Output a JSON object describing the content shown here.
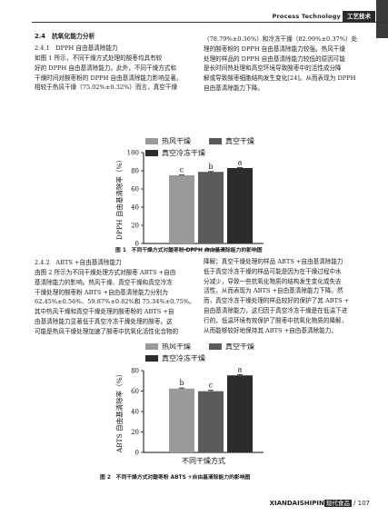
{
  "header": {
    "journal_en": "Process Technology",
    "journal_cn": "工艺技术"
  },
  "section": {
    "title": "2.4　抗氧化能力分析"
  },
  "sub1": {
    "title": "2.4.1　DPPH 自由基清除能力"
  },
  "left_para1": [
    "如图 1 所示，不同干燥方式处理的酸枣均具有较",
    "好的 DPPH 自由基清除能力。此外，不同干燥方式和",
    "干燥时间对酸枣粉的 DPPH 自由基清除能力影响显著。",
    "相较于热风干燥（75.02%±0.32%）而言，真空干燥"
  ],
  "right_para1": [
    "（78.79%±0.36%）和冷冻干燥（82.99%±0.37%）处",
    "理的酸枣粉的 DPPH 自由基清除能力较强。热风干燥",
    "处理的样品的 DPPH 自由基清除能力较低的原因可能",
    "是长时间热处理和高空环境导致酸枣中的活性成分降",
    "解或导致酸枣细胞结构发生变化[24]。从而表现为 DPPH",
    "自由基清除能力下降。"
  ],
  "fig1": {
    "caption": "图 1　不同干燥方式对酸枣粉 DPPH 自由基清除能力的影响图",
    "legend": [
      "热风干燥",
      "真空干燥",
      "真空冷冻干燥"
    ],
    "ylabel": "DPPH 自由基清除率（%）",
    "xlabel": "不同干燥方式",
    "letters": [
      "c",
      "b",
      "a"
    ]
  },
  "sub2": {
    "title": "2.4.2　ABTS +自由基清除能力"
  },
  "left_para2": [
    "由图 2 所示为不同干燥处理方式对酸枣 ABTS +自由",
    "基清除能力的影响。热风干燥、真空干燥和真空冷冻",
    "干燥处理的酸枣粉 ABTS +自由基清除能力分别为",
    "62.45%±0.56%、59.87%±0.82%和 75.34%±0.75%。",
    "其中热风干燥和真空干燥处理的酸枣粉的 ABTS +自",
    "由基清除能力显著低于真空冷冻干燥处理的酸枣。这",
    "可能是热风干燥处理加速了酸枣中抗氧化活性化合物的"
  ],
  "right_para2": [
    "降解；真空干燥处理的样品 ABTS +自由基清除能力",
    "低于真空冷冻干燥的样品可能是因为在干燥过程中水",
    "分减少，导致一些抗氧化物质的结构发生变化或失去",
    "活性，从而表现为 ABTS +自由基清除能力下降。然",
    "而，真空冷冻干燥处理的样品较好的保护了其 ABTS +",
    "自由基清除能力，这归因于真空冷冻干燥是在低温下进",
    "行的，低温环境有效保护了酸枣中抗氧化物质的降解，",
    "从而能够较好地保持其 ABTS +自由基清除能力。"
  ],
  "fig2": {
    "caption": "图 2　不同干燥方式对酸枣粉 ABTS +自由基清除能力的影响图",
    "legend": [
      "热风干燥",
      "真空干燥",
      "真空冷冻干燥"
    ],
    "ylabel": "ABTS 自由基清除率（%）",
    "xlabel": "不同干燥方式",
    "letters": [
      "b",
      "c",
      "a"
    ]
  },
  "footer": {
    "brand": "XIANDAISHIPIN",
    "badge": "现代食品",
    "page": "/ 107"
  },
  "chart_data": [
    {
      "type": "bar",
      "categories": [
        "热风干燥",
        "真空干燥",
        "真空冷冻干燥"
      ],
      "values": [
        75.02,
        78.79,
        82.99
      ],
      "errors": [
        0.32,
        0.36,
        0.37
      ],
      "ylabel": "DPPH 自由基清除率（%）",
      "xlabel": "不同干燥方式",
      "ylim": [
        0,
        100
      ],
      "yticks": [
        0,
        20,
        40,
        60,
        80,
        100
      ],
      "colors": [
        "#9a9a9a",
        "#5a5a5a",
        "#2b2b2b"
      ],
      "legend_position": "top"
    },
    {
      "type": "bar",
      "categories": [
        "热风干燥",
        "真空干燥",
        "真空冷冻干燥"
      ],
      "values": [
        62.45,
        59.87,
        75.34
      ],
      "errors": [
        0.56,
        0.82,
        0.75
      ],
      "ylabel": "ABTS 自由基清除率（%）",
      "xlabel": "不同干燥方式",
      "ylim": [
        0,
        80
      ],
      "yticks": [
        0,
        20,
        40,
        60,
        80
      ],
      "colors": [
        "#9a9a9a",
        "#5a5a5a",
        "#2b2b2b"
      ],
      "legend_position": "top"
    }
  ]
}
